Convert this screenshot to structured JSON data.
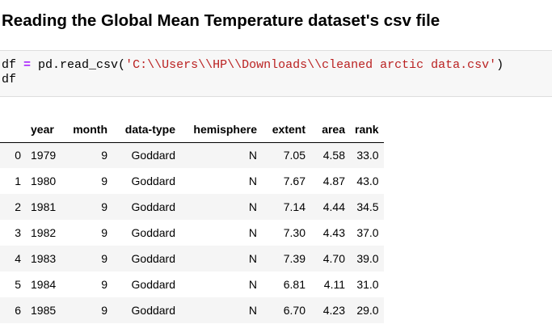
{
  "heading": "Reading the Global Mean Temperature dataset's csv file",
  "code": {
    "var": "df ",
    "op": "=",
    "call": " pd.read_csv(",
    "path": "'C:\\\\Users\\\\HP\\\\Downloads\\\\cleaned arctic data.csv'",
    "close": ")",
    "line2": "df"
  },
  "table": {
    "columns": [
      "",
      "year",
      "month",
      "data-type",
      "hemisphere",
      "extent",
      "area",
      "rank"
    ],
    "rows": [
      [
        "0",
        "1979",
        "9",
        "Goddard",
        "N",
        "7.05",
        "4.58",
        "33.0"
      ],
      [
        "1",
        "1980",
        "9",
        "Goddard",
        "N",
        "7.67",
        "4.87",
        "43.0"
      ],
      [
        "2",
        "1981",
        "9",
        "Goddard",
        "N",
        "7.14",
        "4.44",
        "34.5"
      ],
      [
        "3",
        "1982",
        "9",
        "Goddard",
        "N",
        "7.30",
        "4.43",
        "37.0"
      ],
      [
        "4",
        "1983",
        "9",
        "Goddard",
        "N",
        "7.39",
        "4.70",
        "39.0"
      ],
      [
        "5",
        "1984",
        "9",
        "Goddard",
        "N",
        "6.81",
        "4.11",
        "31.0"
      ],
      [
        "6",
        "1985",
        "9",
        "Goddard",
        "N",
        "6.70",
        "4.23",
        "29.0"
      ]
    ]
  }
}
